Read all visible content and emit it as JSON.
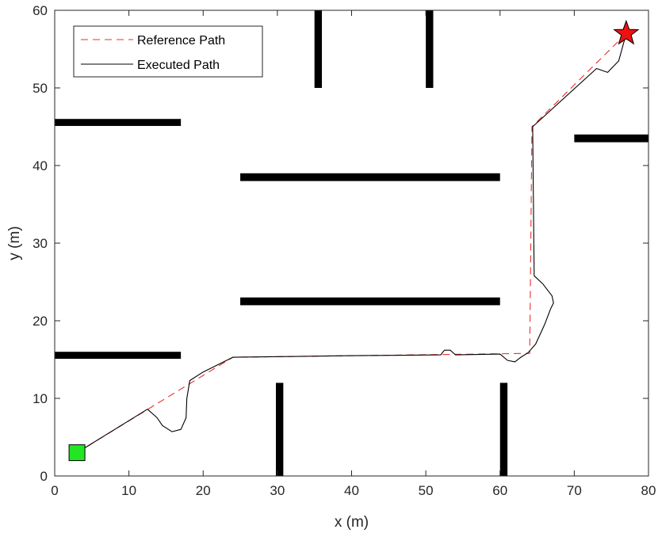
{
  "chart_data": {
    "type": "line",
    "title": "",
    "xlabel": "x (m)",
    "ylabel": "y (m)",
    "xlim": [
      0,
      80
    ],
    "ylim": [
      0,
      60
    ],
    "xticks": [
      0,
      10,
      20,
      30,
      40,
      50,
      60,
      70,
      80
    ],
    "yticks": [
      0,
      10,
      20,
      30,
      40,
      50,
      60
    ],
    "grid": false,
    "legend_position": "top-left",
    "series": [
      {
        "name": "Reference Path",
        "style": "dashed",
        "color": "#e8302a",
        "points": [
          [
            3,
            3
          ],
          [
            24,
            15.3
          ],
          [
            64,
            15.8
          ],
          [
            64.3,
            45
          ],
          [
            77,
            57
          ]
        ]
      },
      {
        "name": "Executed Path",
        "style": "solid",
        "color": "#000000",
        "points": [
          [
            3,
            3
          ],
          [
            12.5,
            8.6
          ],
          [
            13.8,
            7.5
          ],
          [
            14.5,
            6.5
          ],
          [
            15.8,
            5.7
          ],
          [
            17.0,
            6.0
          ],
          [
            17.7,
            7.5
          ],
          [
            17.8,
            10.0
          ],
          [
            18.2,
            12.3
          ],
          [
            20.0,
            13.4
          ],
          [
            24,
            15.3
          ],
          [
            40,
            15.5
          ],
          [
            52,
            15.6
          ],
          [
            52.5,
            16.2
          ],
          [
            53.3,
            16.2
          ],
          [
            54,
            15.6
          ],
          [
            60,
            15.7
          ],
          [
            61,
            14.9
          ],
          [
            62,
            14.7
          ],
          [
            62.8,
            15.3
          ],
          [
            63.8,
            15.9
          ],
          [
            64.8,
            17.0
          ],
          [
            66.0,
            19.5
          ],
          [
            66.8,
            21.5
          ],
          [
            67.2,
            22.3
          ],
          [
            67.0,
            23.2
          ],
          [
            65.8,
            24.7
          ],
          [
            64.6,
            25.8
          ],
          [
            64.4,
            45
          ],
          [
            73,
            52.5
          ],
          [
            74.5,
            52.0
          ],
          [
            76,
            53.5
          ],
          [
            77,
            57
          ]
        ]
      }
    ],
    "obstacles": [
      {
        "x1": 0,
        "x2": 17,
        "y1": 15.1,
        "y2": 16.0
      },
      {
        "x1": 0,
        "x2": 17,
        "y1": 45.1,
        "y2": 46.0
      },
      {
        "x1": 25,
        "x2": 60,
        "y1": 22.0,
        "y2": 23.0
      },
      {
        "x1": 25,
        "x2": 60,
        "y1": 38.0,
        "y2": 39.0
      },
      {
        "x1": 70,
        "x2": 80,
        "y1": 43.0,
        "y2": 44.0
      },
      {
        "x1": 35,
        "x2": 36,
        "y1": 50,
        "y2": 60
      },
      {
        "x1": 50,
        "x2": 51,
        "y1": 50,
        "y2": 60
      },
      {
        "x1": 29.8,
        "x2": 30.8,
        "y1": 0,
        "y2": 12
      },
      {
        "x1": 60,
        "x2": 61,
        "y1": 0,
        "y2": 12
      }
    ],
    "start": {
      "x": 3,
      "y": 3,
      "color": "#22e622"
    },
    "goal": {
      "x": 77,
      "y": 57,
      "color": "#ee1111"
    }
  }
}
